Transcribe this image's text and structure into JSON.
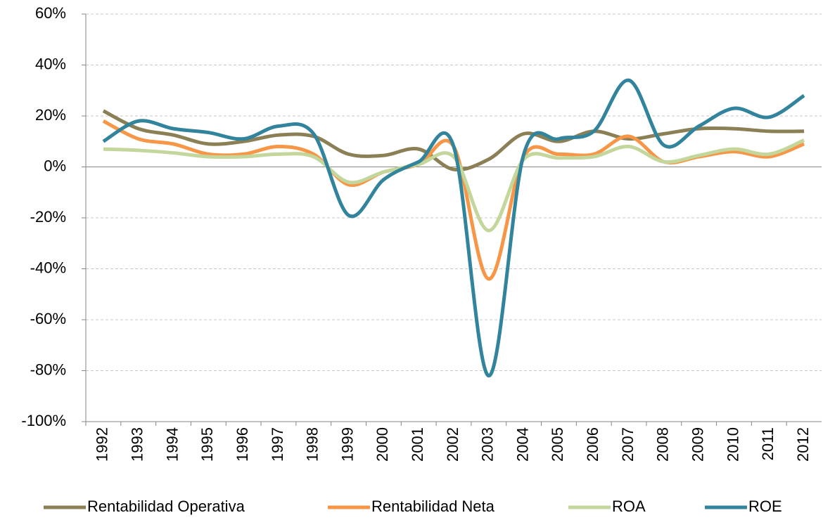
{
  "chart_data": {
    "type": "line",
    "categories": [
      "1992",
      "1993",
      "1994",
      "1995",
      "1996",
      "1997",
      "1998",
      "1999",
      "2000",
      "2001",
      "2002",
      "2003",
      "2004",
      "2005",
      "2006",
      "2007",
      "2008",
      "2009",
      "2010",
      "2011",
      "2012"
    ],
    "series": [
      {
        "name": "Rentabilidad Operativa",
        "color": "#8b8055",
        "values": [
          22,
          15,
          12.5,
          9,
          10,
          12.5,
          12,
          5,
          4.5,
          7,
          -1,
          3,
          13,
          10,
          14,
          11,
          13,
          15,
          15,
          14,
          14
        ]
      },
      {
        "name": "Rentabilidad Neta",
        "color": "#f79646",
        "values": [
          18,
          11,
          9,
          5,
          5,
          8,
          5,
          -7,
          -2,
          1,
          8,
          -44,
          4,
          5,
          5,
          12,
          2,
          4,
          6,
          4,
          9
        ]
      },
      {
        "name": "ROA",
        "color": "#c3d69b",
        "values": [
          7,
          6.5,
          5.5,
          4,
          4,
          5,
          4,
          -6,
          -2,
          1,
          4,
          -25,
          3,
          3.5,
          4,
          8,
          2,
          4.5,
          7,
          5,
          10.5
        ]
      },
      {
        "name": "ROE",
        "color": "#31849b",
        "values": [
          10,
          18,
          15,
          13.5,
          11,
          16,
          13,
          -19,
          -5,
          2,
          8,
          -82,
          5,
          11,
          14,
          34,
          8.5,
          16,
          23,
          19.5,
          28
        ]
      }
    ],
    "ylim": [
      -100,
      60
    ],
    "yticks": [
      {
        "value": -100,
        "label": "-100%"
      },
      {
        "value": -80,
        "label": "-80%"
      },
      {
        "value": -60,
        "label": "-60%"
      },
      {
        "value": -40,
        "label": "-40%"
      },
      {
        "value": -20,
        "label": "-20%"
      },
      {
        "value": 0,
        "label": "0%"
      },
      {
        "value": 20,
        "label": "20%"
      },
      {
        "value": 40,
        "label": "40%"
      },
      {
        "value": 60,
        "label": "60%"
      }
    ],
    "grid": true,
    "legend": "bottom"
  }
}
